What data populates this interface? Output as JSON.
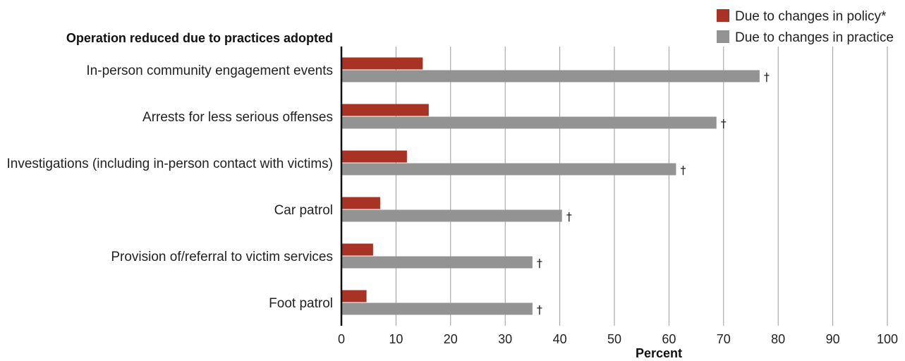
{
  "chart_data": {
    "type": "bar",
    "orientation": "horizontal",
    "title": "Operation reduced due to practices adopted",
    "xlabel": "Percent",
    "xlim": [
      0,
      100
    ],
    "xticks": [
      0,
      10,
      20,
      30,
      40,
      50,
      60,
      70,
      80,
      90,
      100
    ],
    "grid": true,
    "legend_position": "top-right",
    "categories": [
      "In-person community engagement events",
      "Arrests for less serious offenses",
      "Investigations (including in-person contact with victims)",
      "Car patrol",
      "Provision of/referral to victim services",
      "Foot patrol"
    ],
    "series": [
      {
        "name": "Due to changes in policy*",
        "color": "#a83224",
        "values": [
          14.9,
          16.0,
          12.0,
          7.1,
          5.8,
          4.6
        ]
      },
      {
        "name": "Due to changes in practice",
        "color": "#939393",
        "values": [
          76.6,
          68.7,
          61.3,
          40.4,
          35.0,
          35.0
        ]
      }
    ],
    "annotations": {
      "symbol": "†",
      "series_index": 1
    }
  }
}
